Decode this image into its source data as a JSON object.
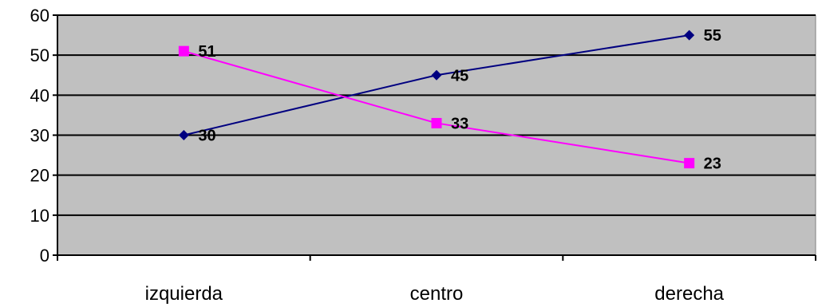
{
  "chart_data": {
    "type": "line",
    "title": "",
    "xlabel": "",
    "ylabel": "",
    "categories": [
      "izquierda",
      "centro",
      "derecha"
    ],
    "ylim": [
      0,
      60
    ],
    "yticks": [
      0,
      10,
      20,
      30,
      40,
      50,
      60
    ],
    "grid": true,
    "legend": "none",
    "plot_background": "#C0C0C0",
    "series": [
      {
        "values": [
          30,
          45,
          55
        ],
        "color": "#000080",
        "marker": "diamond",
        "labels": [
          "30",
          "45",
          "55"
        ]
      },
      {
        "values": [
          51,
          33,
          23
        ],
        "color": "#FF00FF",
        "marker": "square",
        "labels": [
          "51",
          "33",
          "23"
        ]
      }
    ]
  }
}
